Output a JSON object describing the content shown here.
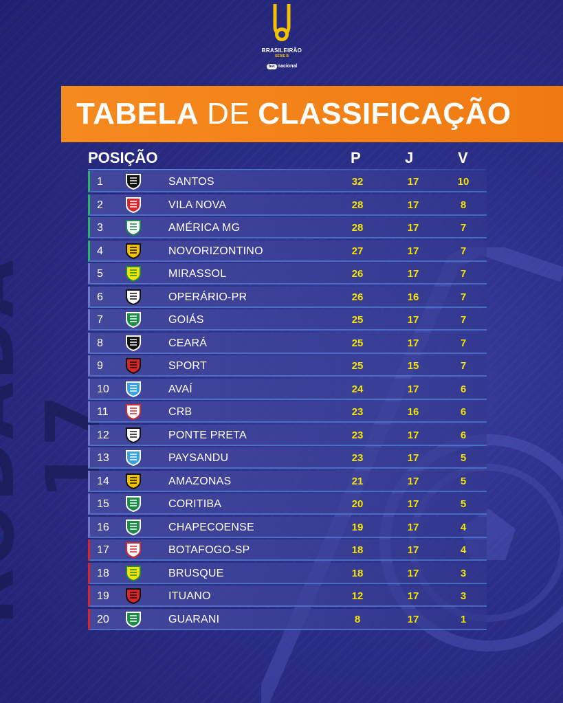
{
  "logo": {
    "brand": "BRASILEIRÃO",
    "serie": "SÉRIE B",
    "sponsor_badge": "bet",
    "sponsor_name": "nacional"
  },
  "title": {
    "part1": "TABELA",
    "part2": "DE",
    "part3": "CLASSIFICAÇÃO"
  },
  "side_text": "RODADA 17",
  "columns": {
    "position": "POSIÇÃO",
    "points": "P",
    "games": "J",
    "wins": "V"
  },
  "colors": {
    "background": "#2a2d85",
    "banner": "#f58a1f",
    "promotion": "#29b36b",
    "relegation": "#d9262b",
    "stat_text": "#f5e400"
  },
  "rows": [
    {
      "pos": "1",
      "team": "SANTOS",
      "p": "32",
      "j": "17",
      "v": "10",
      "zone": "g",
      "crest": [
        "#111",
        "#fff"
      ]
    },
    {
      "pos": "2",
      "team": "VILA NOVA",
      "p": "28",
      "j": "17",
      "v": "8",
      "zone": "g",
      "crest": [
        "#d9262b",
        "#fff"
      ]
    },
    {
      "pos": "3",
      "team": "AMÉRICA MG",
      "p": "28",
      "j": "17",
      "v": "7",
      "zone": "g",
      "crest": [
        "#fff",
        "#1d8a4a"
      ]
    },
    {
      "pos": "4",
      "team": "NOVORIZONTINO",
      "p": "27",
      "j": "17",
      "v": "7",
      "zone": "g",
      "crest": [
        "#f2c200",
        "#111"
      ]
    },
    {
      "pos": "5",
      "team": "MIRASSOL",
      "p": "26",
      "j": "17",
      "v": "7",
      "zone": "n",
      "crest": [
        "#f5e400",
        "#1d8a4a"
      ]
    },
    {
      "pos": "6",
      "team": "OPERÁRIO-PR",
      "p": "26",
      "j": "16",
      "v": "7",
      "zone": "n",
      "crest": [
        "#fff",
        "#111"
      ]
    },
    {
      "pos": "7",
      "team": "GOIÁS",
      "p": "25",
      "j": "17",
      "v": "7",
      "zone": "n",
      "crest": [
        "#1d8a4a",
        "#fff"
      ]
    },
    {
      "pos": "8",
      "team": "CEARÁ",
      "p": "25",
      "j": "17",
      "v": "7",
      "zone": "n",
      "crest": [
        "#111",
        "#fff"
      ]
    },
    {
      "pos": "9",
      "team": "SPORT",
      "p": "25",
      "j": "15",
      "v": "7",
      "zone": "n",
      "crest": [
        "#d9262b",
        "#111"
      ]
    },
    {
      "pos": "10",
      "team": "AVAÍ",
      "p": "24",
      "j": "17",
      "v": "6",
      "zone": "n",
      "crest": [
        "#3aa0e0",
        "#fff"
      ]
    },
    {
      "pos": "11",
      "team": "CRB",
      "p": "23",
      "j": "16",
      "v": "6",
      "zone": "n",
      "crest": [
        "#fff",
        "#d9262b"
      ]
    },
    {
      "pos": "12",
      "team": "PONTE PRETA",
      "p": "23",
      "j": "17",
      "v": "6",
      "zone": "n",
      "crest": [
        "#fff",
        "#111"
      ]
    },
    {
      "pos": "13",
      "team": "PAYSANDU",
      "p": "23",
      "j": "17",
      "v": "5",
      "zone": "n",
      "crest": [
        "#3aa0e0",
        "#fff"
      ]
    },
    {
      "pos": "14",
      "team": "AMAZONAS",
      "p": "21",
      "j": "17",
      "v": "5",
      "zone": "n",
      "crest": [
        "#f2c200",
        "#111"
      ]
    },
    {
      "pos": "15",
      "team": "CORITIBA",
      "p": "20",
      "j": "17",
      "v": "5",
      "zone": "n",
      "crest": [
        "#1d8a4a",
        "#fff"
      ]
    },
    {
      "pos": "16",
      "team": "CHAPECOENSE",
      "p": "19",
      "j": "17",
      "v": "4",
      "zone": "n",
      "crest": [
        "#1d8a4a",
        "#fff"
      ]
    },
    {
      "pos": "17",
      "team": "BOTAFOGO-SP",
      "p": "18",
      "j": "17",
      "v": "4",
      "zone": "r",
      "crest": [
        "#fff",
        "#d9262b"
      ]
    },
    {
      "pos": "18",
      "team": "BRUSQUE",
      "p": "18",
      "j": "17",
      "v": "3",
      "zone": "r",
      "crest": [
        "#f5e400",
        "#1d8a4a"
      ]
    },
    {
      "pos": "19",
      "team": "ITUANO",
      "p": "12",
      "j": "17",
      "v": "3",
      "zone": "r",
      "crest": [
        "#d9262b",
        "#111"
      ]
    },
    {
      "pos": "20",
      "team": "GUARANI",
      "p": "8",
      "j": "17",
      "v": "1",
      "zone": "r",
      "crest": [
        "#1d8a4a",
        "#fff"
      ]
    }
  ]
}
